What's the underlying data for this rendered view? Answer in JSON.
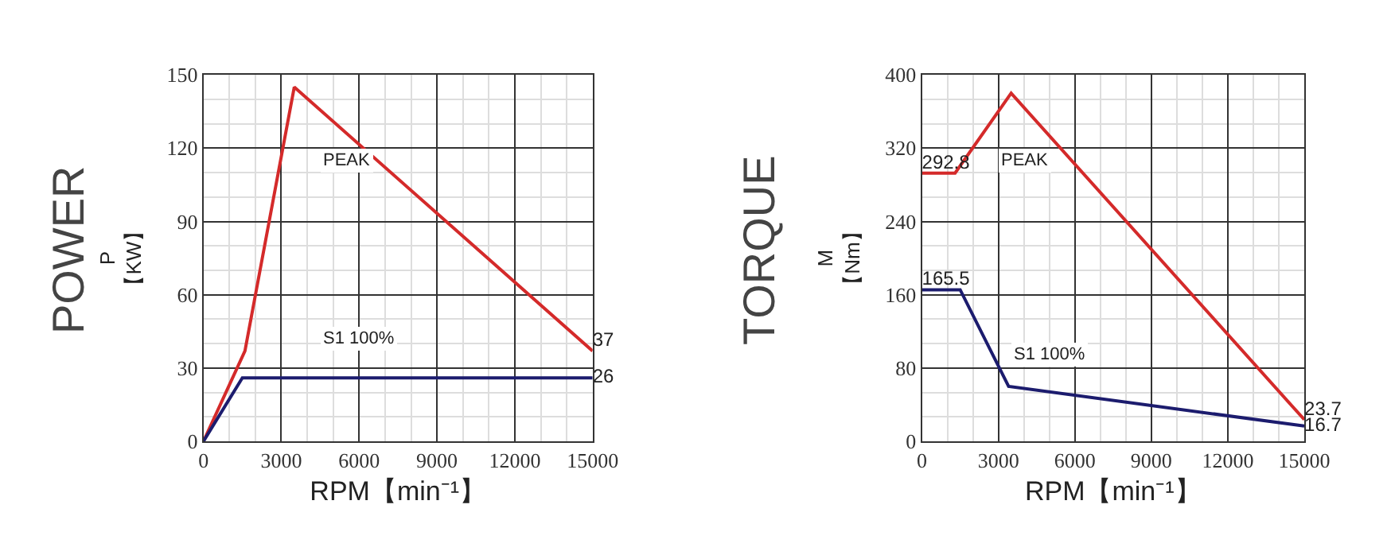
{
  "chart_data": [
    {
      "type": "line",
      "xlabel": "RPM【min⁻¹】",
      "ylabel": "P\n【KW】",
      "xlim": [
        0,
        15000
      ],
      "ylim": [
        0,
        150
      ],
      "xticks": [
        0,
        3000,
        6000,
        9000,
        12000,
        15000
      ],
      "yticks": [
        0,
        30,
        60,
        90,
        120,
        150
      ],
      "grid": true,
      "legend": false,
      "marker": "none",
      "line_style": "solid",
      "annotations": [
        "POWER",
        "PEAK",
        "S1 100%"
      ],
      "series": [
        {
          "color": "#d42a2a",
          "x": [
            0,
            1600,
            3500,
            15000
          ],
          "values": [
            0,
            37,
            145,
            37
          ],
          "value_labels": [
            null,
            null,
            null,
            "37"
          ]
        },
        {
          "color": "#1c1c6e",
          "x": [
            0,
            1500,
            15000
          ],
          "values": [
            0,
            26,
            26
          ],
          "value_labels": [
            null,
            null,
            "26"
          ]
        }
      ]
    },
    {
      "type": "line",
      "xlabel": "RPM【min⁻¹】",
      "ylabel": "M\n【Nm】",
      "xlim": [
        0,
        15000
      ],
      "ylim": [
        0,
        400
      ],
      "xticks": [
        0,
        3000,
        6000,
        9000,
        12000,
        15000
      ],
      "yticks": [
        0,
        80,
        160,
        240,
        320,
        400
      ],
      "grid": true,
      "legend": false,
      "marker": "none",
      "line_style": "solid",
      "annotations": [
        "TORQUE",
        "PEAK",
        "S1 100%"
      ],
      "series": [
        {
          "color": "#d42a2a",
          "x": [
            0,
            1300,
            3500,
            15000
          ],
          "values": [
            292.8,
            292.8,
            380,
            23.7
          ],
          "value_labels": [
            "292.8",
            null,
            null,
            "23.7"
          ]
        },
        {
          "color": "#1c1c6e",
          "x": [
            0,
            1500,
            3400,
            15000
          ],
          "values": [
            165.5,
            165.5,
            60,
            16.7
          ],
          "value_labels": [
            "165.5",
            null,
            null,
            "16.7"
          ]
        }
      ]
    }
  ]
}
